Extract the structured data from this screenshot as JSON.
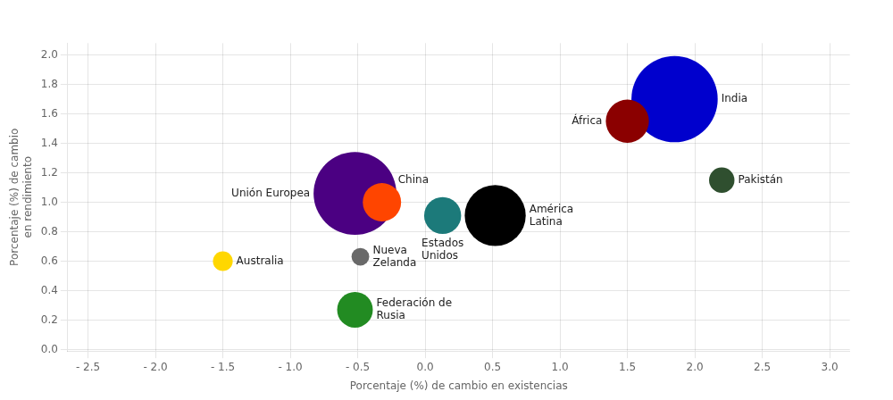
{
  "chart_data": {
    "type": "bubble",
    "xlabel": "Porcentaje (%) de cambio en existencias",
    "ylabel": "Porcentaje (%) de cambio\nen rendimiento",
    "series": [
      {
        "name": "Australia",
        "color": "#FFD700",
        "x": [
          -1.5
        ],
        "values": [
          0.6
        ],
        "sizes": [
          200
        ]
      },
      {
        "name": "Federación de\nRusia",
        "color": "#228B22",
        "x": [
          -0.52
        ],
        "values": [
          0.27
        ],
        "sizes": [
          650
        ]
      },
      {
        "name": "Nueva\nZelanda",
        "color": "#696969",
        "x": [
          -0.48
        ],
        "values": [
          0.63
        ],
        "sizes": [
          160
        ]
      },
      {
        "name": "Unión Europea",
        "color": "#4B0082",
        "x": [
          -0.52
        ],
        "values": [
          1.06
        ],
        "sizes": [
          3500
        ]
      },
      {
        "name": "China",
        "color": "#FF4500",
        "x": [
          -0.32
        ],
        "values": [
          1.0
        ],
        "sizes": [
          750
        ]
      },
      {
        "name": "Estados\nUnidos",
        "color": "#1C7A7A",
        "x": [
          0.13
        ],
        "values": [
          0.91
        ],
        "sizes": [
          700
        ]
      },
      {
        "name": "América\nLatina",
        "color": "#000000",
        "x": [
          0.52
        ],
        "values": [
          0.91
        ],
        "sizes": [
          1900
        ]
      },
      {
        "name": "África",
        "color": "#8B0000",
        "x": [
          1.5
        ],
        "values": [
          1.55
        ],
        "sizes": [
          950
        ]
      },
      {
        "name": "India",
        "color": "#0000CD",
        "x": [
          1.85
        ],
        "values": [
          1.7
        ],
        "sizes": [
          3800
        ]
      },
      {
        "name": "Pakistán",
        "color": "#2F4F2F",
        "x": [
          2.2
        ],
        "values": [
          1.15
        ],
        "sizes": [
          330
        ]
      }
    ],
    "xlim": [
      -2.65,
      3.15
    ],
    "ylim": [
      -0.01,
      2.08
    ],
    "xticks": [
      {
        "value": -2.5,
        "label": "- 2.5"
      },
      {
        "value": -2.0,
        "label": "- 2.0"
      },
      {
        "value": -1.5,
        "label": "- 1.5"
      },
      {
        "value": -1.0,
        "label": "- 1.0"
      },
      {
        "value": -0.5,
        "label": "- 0.5"
      },
      {
        "value": 0,
        "label": "0.0"
      },
      0.5,
      {
        "value": 1,
        "label": "1.0"
      },
      1.5,
      {
        "value": 2,
        "label": "2.0"
      },
      2.5,
      {
        "value": 3,
        "label": "3.0"
      }
    ],
    "yticks": [
      {
        "value": 0,
        "label": "0.0"
      },
      0.2,
      0.4,
      0.6,
      0.8,
      {
        "value": 1,
        "label": "1.0"
      },
      1.2,
      1.4,
      1.6,
      1.8,
      {
        "value": 2,
        "label": "2.0"
      }
    ],
    "grid": true
  }
}
